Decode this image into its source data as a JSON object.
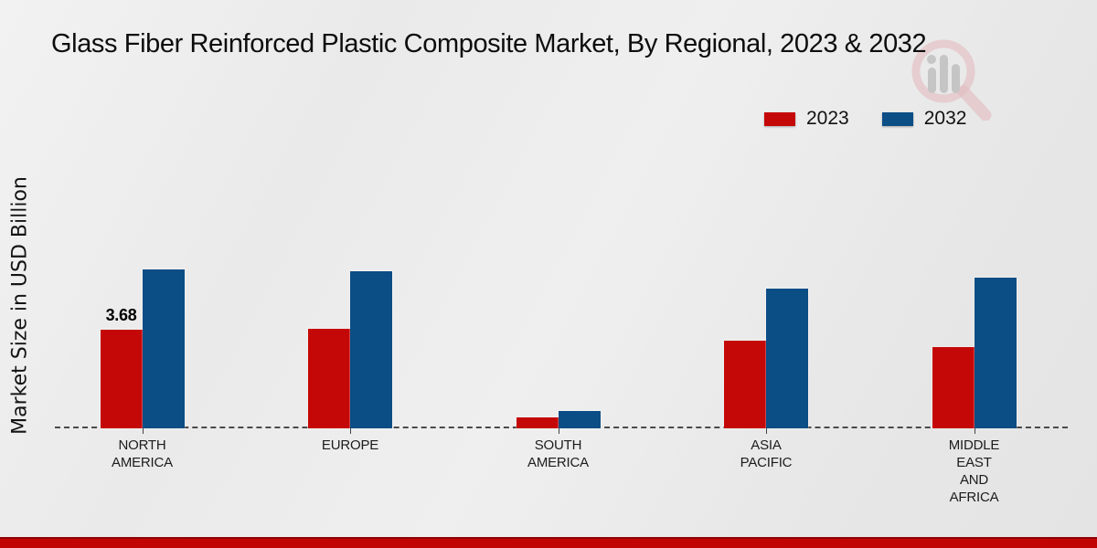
{
  "chart_data": {
    "type": "bar",
    "title": "Glass Fiber Reinforced Plastic Composite Market, By Regional, 2023 & 2032",
    "xlabel": "",
    "ylabel": "Market Size in USD Billion",
    "ylim": [
      0,
      7
    ],
    "grid": false,
    "legend_position": "top-right",
    "baseline_style": "dashed",
    "categories": [
      "NORTH AMERICA",
      "EUROPE",
      "SOUTH AMERICA",
      "ASIA PACIFIC",
      "MIDDLE EAST AND AFRICA"
    ],
    "category_label_lines": [
      [
        "NORTH",
        "AMERICA"
      ],
      [
        "EUROPE"
      ],
      [
        "SOUTH",
        "AMERICA"
      ],
      [
        "ASIA",
        "PACIFIC"
      ],
      [
        "MIDDLE",
        "EAST",
        "AND",
        "AFRICA"
      ]
    ],
    "series": [
      {
        "name": "2023",
        "color": "#c40808",
        "values": [
          3.68,
          3.72,
          0.41,
          3.27,
          3.02
        ]
      },
      {
        "name": "2032",
        "color": "#0b4d85",
        "values": [
          5.92,
          5.87,
          0.65,
          5.21,
          5.63
        ]
      }
    ],
    "data_labels": [
      {
        "series": 0,
        "category": 0,
        "text": "3.68"
      }
    ]
  },
  "watermark_icon": "magnifier-bar-chart-logo",
  "footer": {
    "band_color": "#c10505"
  }
}
